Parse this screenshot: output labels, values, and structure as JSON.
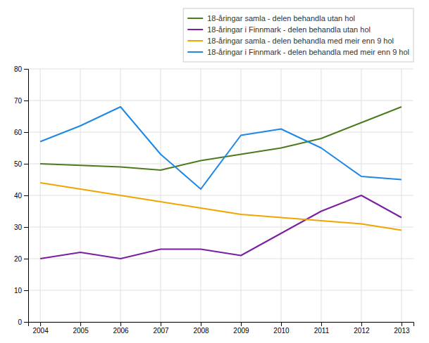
{
  "chart_data": {
    "type": "line",
    "categories": [
      "2004",
      "2005",
      "2006",
      "2007",
      "2008",
      "2009",
      "2010",
      "2011",
      "2012",
      "2013"
    ],
    "series": [
      {
        "name": "18-åringar samla - delen behandla utan hol",
        "color": "#4e7a1e",
        "values": [
          50,
          49.5,
          49,
          48,
          51,
          53,
          55,
          58,
          63,
          68
        ]
      },
      {
        "name": "18-åringar i Finnmark - delen behandla utan hol",
        "color": "#7b1fa2",
        "values": [
          20,
          22,
          20,
          23,
          23,
          21,
          28,
          35,
          40,
          33
        ]
      },
      {
        "name": "18-åringar samla - delen behandla med meir enn 9 hol",
        "color": "#f0a500",
        "values": [
          44,
          42,
          40,
          38,
          36,
          34,
          33,
          32,
          31,
          29
        ]
      },
      {
        "name": "18-åringar i Finnmark - delen behandla med meir enn 9 hol",
        "color": "#1e88e5",
        "values": [
          57,
          62,
          68,
          53,
          42,
          59,
          61,
          55,
          46,
          45
        ]
      }
    ],
    "ylim": [
      0,
      80
    ],
    "yticks": [
      0,
      10,
      20,
      30,
      40,
      50,
      60,
      70,
      80
    ],
    "grid": true,
    "legend": "upper right"
  }
}
